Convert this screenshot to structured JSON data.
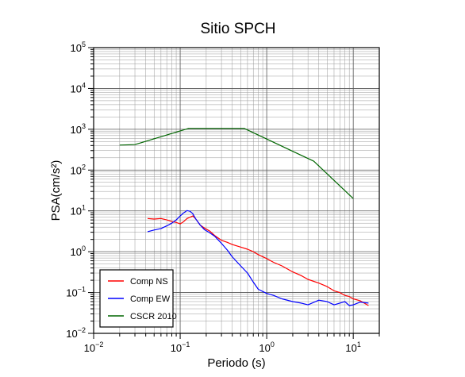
{
  "chart_data": {
    "type": "line",
    "title": "Sitio SPCH",
    "xlabel": "Periodo (s)",
    "ylabel": "PSA(cm/s²)",
    "xscale": "log",
    "yscale": "log",
    "xlim": [
      0.01,
      20
    ],
    "ylim": [
      0.01,
      100000
    ],
    "grid": true,
    "legend_position": "bottom-left",
    "x_ticks": [
      {
        "base": "10",
        "exp": "−2",
        "value": 0.01
      },
      {
        "base": "10",
        "exp": "−1",
        "value": 0.1
      },
      {
        "base": "10",
        "exp": "0",
        "value": 1
      },
      {
        "base": "10",
        "exp": "1",
        "value": 10
      }
    ],
    "y_ticks": [
      {
        "base": "10",
        "exp": "−2",
        "value": 0.01
      },
      {
        "base": "10",
        "exp": "−1",
        "value": 0.1
      },
      {
        "base": "10",
        "exp": "0",
        "value": 1
      },
      {
        "base": "10",
        "exp": "1",
        "value": 10
      },
      {
        "base": "10",
        "exp": "2",
        "value": 100
      },
      {
        "base": "10",
        "exp": "3",
        "value": 1000
      },
      {
        "base": "10",
        "exp": "4",
        "value": 10000
      },
      {
        "base": "10",
        "exp": "5",
        "value": 100000
      }
    ],
    "series": [
      {
        "name": "Comp NS",
        "color": "#ff0000",
        "x": [
          0.042,
          0.05,
          0.06,
          0.07,
          0.08,
          0.09,
          0.1,
          0.11,
          0.12,
          0.13,
          0.14,
          0.15,
          0.17,
          0.19,
          0.22,
          0.25,
          0.3,
          0.35,
          0.4,
          0.5,
          0.6,
          0.7,
          0.8,
          1.0,
          1.2,
          1.5,
          2.0,
          2.5,
          3.0,
          4.0,
          5.0,
          6.0,
          7.0,
          8.0,
          9.0,
          10.0,
          12.0,
          15.0
        ],
        "y": [
          6.5,
          6.3,
          6.5,
          6.0,
          5.5,
          5.2,
          4.8,
          5.5,
          6.5,
          7.0,
          7.5,
          6.5,
          4.5,
          3.8,
          3.2,
          2.5,
          1.9,
          1.7,
          1.5,
          1.3,
          1.15,
          1.0,
          0.85,
          0.68,
          0.55,
          0.45,
          0.32,
          0.26,
          0.21,
          0.17,
          0.14,
          0.11,
          0.1,
          0.085,
          0.08,
          0.07,
          0.063,
          0.048
        ]
      },
      {
        "name": "Comp EW",
        "color": "#0000ff",
        "x": [
          0.042,
          0.05,
          0.06,
          0.07,
          0.08,
          0.09,
          0.1,
          0.11,
          0.12,
          0.13,
          0.14,
          0.15,
          0.17,
          0.19,
          0.22,
          0.25,
          0.3,
          0.35,
          0.4,
          0.5,
          0.6,
          0.7,
          0.8,
          1.0,
          1.2,
          1.5,
          2.0,
          2.5,
          3.0,
          4.0,
          5.0,
          6.0,
          7.0,
          8.0,
          9.0,
          10.0,
          12.0,
          15.0
        ],
        "y": [
          3.1,
          3.4,
          3.7,
          4.3,
          5.0,
          6.0,
          7.5,
          9.0,
          10.2,
          9.8,
          8.5,
          6.5,
          4.5,
          3.5,
          2.9,
          2.4,
          1.6,
          1.1,
          0.75,
          0.45,
          0.3,
          0.18,
          0.12,
          0.095,
          0.085,
          0.07,
          0.06,
          0.055,
          0.05,
          0.065,
          0.06,
          0.05,
          0.055,
          0.06,
          0.048,
          0.05,
          0.058,
          0.055
        ]
      },
      {
        "name": "CSCR 2010",
        "color": "#006600",
        "x": [
          0.02,
          0.03,
          0.125,
          0.55,
          3.5,
          10.0
        ],
        "y": [
          410,
          420,
          1050,
          1050,
          165,
          20
        ]
      }
    ]
  }
}
